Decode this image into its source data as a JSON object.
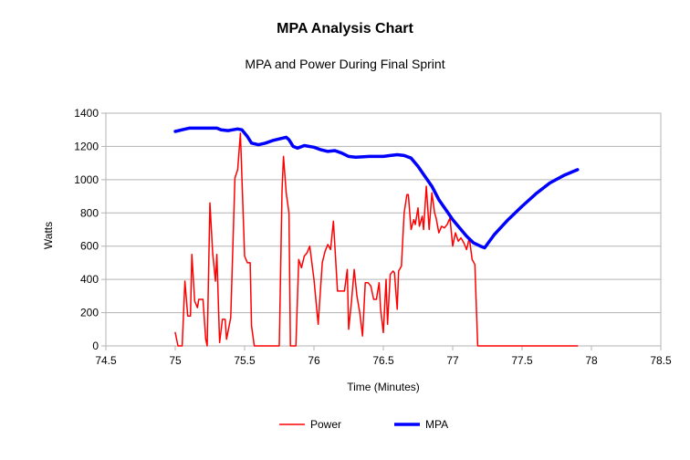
{
  "chart_data": {
    "type": "line",
    "title": "MPA Analysis Chart",
    "subtitle": "MPA and Power During Final Sprint",
    "xlabel": "Time (Minutes)",
    "ylabel": "Watts",
    "xlim": [
      74.5,
      78.5
    ],
    "ylim": [
      0,
      1400
    ],
    "xticks": [
      74.5,
      75,
      75.5,
      76,
      76.5,
      77,
      77.5,
      78,
      78.5
    ],
    "yticks": [
      0,
      200,
      400,
      600,
      800,
      1000,
      1200,
      1400
    ],
    "grid": "horizontal",
    "legend": "bottom",
    "series": [
      {
        "name": "Power",
        "color": "#ff0000",
        "points": [
          [
            75.0,
            80
          ],
          [
            75.02,
            0
          ],
          [
            75.05,
            0
          ],
          [
            75.07,
            390
          ],
          [
            75.09,
            180
          ],
          [
            75.11,
            180
          ],
          [
            75.12,
            550
          ],
          [
            75.14,
            270
          ],
          [
            75.16,
            230
          ],
          [
            75.17,
            280
          ],
          [
            75.2,
            280
          ],
          [
            75.22,
            40
          ],
          [
            75.23,
            0
          ],
          [
            75.25,
            860
          ],
          [
            75.27,
            560
          ],
          [
            75.29,
            390
          ],
          [
            75.3,
            550
          ],
          [
            75.32,
            20
          ],
          [
            75.34,
            160
          ],
          [
            75.36,
            160
          ],
          [
            75.37,
            40
          ],
          [
            75.4,
            170
          ],
          [
            75.43,
            1010
          ],
          [
            75.45,
            1060
          ],
          [
            75.47,
            1280
          ],
          [
            75.5,
            540
          ],
          [
            75.52,
            500
          ],
          [
            75.54,
            500
          ],
          [
            75.55,
            120
          ],
          [
            75.57,
            0
          ],
          [
            75.6,
            0
          ],
          [
            75.7,
            0
          ],
          [
            75.75,
            0
          ],
          [
            75.77,
            930
          ],
          [
            75.78,
            1140
          ],
          [
            75.8,
            920
          ],
          [
            75.82,
            800
          ],
          [
            75.83,
            0
          ],
          [
            75.87,
            0
          ],
          [
            75.89,
            520
          ],
          [
            75.91,
            470
          ],
          [
            75.93,
            540
          ],
          [
            75.95,
            560
          ],
          [
            75.97,
            600
          ],
          [
            76.0,
            400
          ],
          [
            76.03,
            130
          ],
          [
            76.06,
            500
          ],
          [
            76.08,
            570
          ],
          [
            76.1,
            610
          ],
          [
            76.12,
            580
          ],
          [
            76.14,
            750
          ],
          [
            76.17,
            330
          ],
          [
            76.2,
            330
          ],
          [
            76.22,
            330
          ],
          [
            76.24,
            460
          ],
          [
            76.25,
            100
          ],
          [
            76.27,
            260
          ],
          [
            76.29,
            460
          ],
          [
            76.31,
            300
          ],
          [
            76.33,
            200
          ],
          [
            76.35,
            60
          ],
          [
            76.37,
            380
          ],
          [
            76.39,
            380
          ],
          [
            76.41,
            360
          ],
          [
            76.43,
            280
          ],
          [
            76.45,
            280
          ],
          [
            76.47,
            380
          ],
          [
            76.48,
            220
          ],
          [
            76.5,
            80
          ],
          [
            76.52,
            400
          ],
          [
            76.53,
            130
          ],
          [
            76.55,
            430
          ],
          [
            76.57,
            450
          ],
          [
            76.58,
            440
          ],
          [
            76.6,
            220
          ],
          [
            76.61,
            450
          ],
          [
            76.63,
            480
          ],
          [
            76.65,
            800
          ],
          [
            76.67,
            910
          ],
          [
            76.68,
            910
          ],
          [
            76.7,
            700
          ],
          [
            76.72,
            760
          ],
          [
            76.73,
            730
          ],
          [
            76.75,
            830
          ],
          [
            76.76,
            720
          ],
          [
            76.78,
            780
          ],
          [
            76.79,
            700
          ],
          [
            76.81,
            960
          ],
          [
            76.83,
            700
          ],
          [
            76.85,
            920
          ],
          [
            76.87,
            800
          ],
          [
            76.88,
            770
          ],
          [
            76.9,
            680
          ],
          [
            76.92,
            720
          ],
          [
            76.94,
            710
          ],
          [
            76.96,
            730
          ],
          [
            76.98,
            770
          ],
          [
            77.0,
            600
          ],
          [
            77.02,
            680
          ],
          [
            77.04,
            630
          ],
          [
            77.06,
            650
          ],
          [
            77.08,
            620
          ],
          [
            77.1,
            580
          ],
          [
            77.12,
            650
          ],
          [
            77.14,
            520
          ],
          [
            77.16,
            490
          ],
          [
            77.18,
            0
          ],
          [
            77.2,
            0
          ],
          [
            77.5,
            0
          ],
          [
            77.9,
            0
          ]
        ]
      },
      {
        "name": "MPA",
        "color": "#0000ff",
        "points": [
          [
            75.0,
            1290
          ],
          [
            75.05,
            1300
          ],
          [
            75.1,
            1310
          ],
          [
            75.2,
            1310
          ],
          [
            75.3,
            1310
          ],
          [
            75.33,
            1300
          ],
          [
            75.38,
            1295
          ],
          [
            75.45,
            1305
          ],
          [
            75.48,
            1300
          ],
          [
            75.52,
            1260
          ],
          [
            75.55,
            1220
          ],
          [
            75.6,
            1210
          ],
          [
            75.65,
            1220
          ],
          [
            75.7,
            1235
          ],
          [
            75.75,
            1245
          ],
          [
            75.8,
            1255
          ],
          [
            75.82,
            1240
          ],
          [
            75.85,
            1200
          ],
          [
            75.88,
            1190
          ],
          [
            75.93,
            1205
          ],
          [
            76.0,
            1195
          ],
          [
            76.05,
            1180
          ],
          [
            76.1,
            1170
          ],
          [
            76.15,
            1175
          ],
          [
            76.2,
            1160
          ],
          [
            76.25,
            1140
          ],
          [
            76.3,
            1135
          ],
          [
            76.4,
            1140
          ],
          [
            76.5,
            1140
          ],
          [
            76.55,
            1145
          ],
          [
            76.6,
            1150
          ],
          [
            76.65,
            1145
          ],
          [
            76.7,
            1130
          ],
          [
            76.75,
            1080
          ],
          [
            76.8,
            1020
          ],
          [
            76.85,
            960
          ],
          [
            76.9,
            880
          ],
          [
            76.95,
            820
          ],
          [
            77.0,
            760
          ],
          [
            77.05,
            710
          ],
          [
            77.1,
            660
          ],
          [
            77.15,
            620
          ],
          [
            77.2,
            600
          ],
          [
            77.23,
            590
          ],
          [
            77.3,
            670
          ],
          [
            77.4,
            760
          ],
          [
            77.5,
            840
          ],
          [
            77.6,
            915
          ],
          [
            77.7,
            980
          ],
          [
            77.8,
            1025
          ],
          [
            77.9,
            1060
          ]
        ]
      }
    ]
  }
}
